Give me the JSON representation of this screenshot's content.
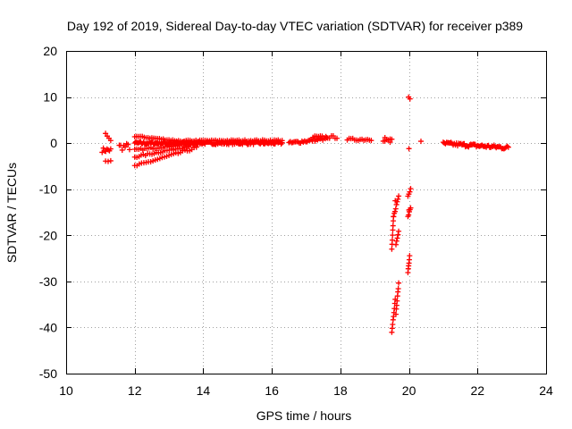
{
  "chart_data": {
    "type": "scatter",
    "title": "Day 192 of 2019, Sidereal Day-to-day VTEC variation (SDTVAR) for receiver p389",
    "xlabel": "GPS time / hours",
    "ylabel": "SDTVAR / TECUs",
    "xlim": [
      10,
      24
    ],
    "ylim": [
      -50,
      20
    ],
    "x_ticks": [
      10,
      12,
      14,
      16,
      18,
      20,
      22,
      24
    ],
    "y_ticks": [
      -50,
      -40,
      -30,
      -20,
      -10,
      0,
      10,
      20
    ],
    "grid": true,
    "marker": "plus",
    "series_color": "#ff0000",
    "bands": [
      {
        "x0": 11.05,
        "x1": 11.3,
        "y0": -1.5,
        "y1": -1.5,
        "spread": 1.0,
        "n": 8
      },
      {
        "x0": 11.15,
        "x1": 11.3,
        "y0": 2.0,
        "y1": 0.5,
        "spread": 0.4,
        "n": 4
      },
      {
        "x0": 11.15,
        "x1": 11.3,
        "y0": -4.0,
        "y1": -3.8,
        "spread": 0.3,
        "n": 3
      },
      {
        "x0": 11.55,
        "x1": 11.85,
        "y0": -0.8,
        "y1": -0.8,
        "spread": 1.6,
        "n": 8
      },
      {
        "x0": 12.0,
        "x1": 16.3,
        "y0": 0.0,
        "y1": 0.0,
        "spread": 0.6,
        "n": 150
      },
      {
        "x0": 12.0,
        "x1": 13.5,
        "y0": 1.5,
        "y1": 0.3,
        "spread": 0.3,
        "n": 28
      },
      {
        "x0": 12.0,
        "x1": 13.6,
        "y0": -1.5,
        "y1": -0.2,
        "spread": 0.4,
        "n": 28
      },
      {
        "x0": 12.0,
        "x1": 13.7,
        "y0": -3.0,
        "y1": -0.5,
        "spread": 0.4,
        "n": 28
      },
      {
        "x0": 12.0,
        "x1": 13.8,
        "y0": -5.0,
        "y1": -1.0,
        "spread": 0.5,
        "n": 28
      },
      {
        "x0": 13.5,
        "x1": 16.3,
        "y0": 0.5,
        "y1": 0.6,
        "spread": 0.3,
        "n": 50
      },
      {
        "x0": 16.5,
        "x1": 17.6,
        "y0": 0.0,
        "y1": 1.0,
        "spread": 0.6,
        "n": 30
      },
      {
        "x0": 17.2,
        "x1": 17.9,
        "y0": 1.3,
        "y1": 1.3,
        "spread": 0.6,
        "n": 14
      },
      {
        "x0": 18.2,
        "x1": 18.9,
        "y0": 0.8,
        "y1": 0.8,
        "spread": 0.5,
        "n": 14
      },
      {
        "x0": 19.25,
        "x1": 19.5,
        "y0": 0.7,
        "y1": 0.7,
        "spread": 0.6,
        "n": 6
      },
      {
        "x0": 19.5,
        "x1": 19.55,
        "y0": -23.0,
        "y1": -16.0,
        "spread": 0.3,
        "n": 8
      },
      {
        "x0": 19.55,
        "x1": 19.7,
        "y0": -16.0,
        "y1": -11.5,
        "spread": 0.4,
        "n": 8
      },
      {
        "x0": 19.62,
        "x1": 19.7,
        "y0": -22.0,
        "y1": -19.0,
        "spread": 0.3,
        "n": 5
      },
      {
        "x0": 19.5,
        "x1": 19.6,
        "y0": -41.0,
        "y1": -34.0,
        "spread": 0.3,
        "n": 9
      },
      {
        "x0": 19.62,
        "x1": 19.7,
        "y0": -37.0,
        "y1": -30.5,
        "spread": 0.3,
        "n": 8
      },
      {
        "x0": 19.97,
        "x1": 20.02,
        "y0": -28.0,
        "y1": -24.5,
        "spread": 0.3,
        "n": 6
      },
      {
        "x0": 19.97,
        "x1": 20.05,
        "y0": -16.0,
        "y1": -14.0,
        "spread": 0.3,
        "n": 5
      },
      {
        "x0": 19.97,
        "x1": 20.05,
        "y0": -11.5,
        "y1": -10.0,
        "spread": 0.3,
        "n": 4
      },
      {
        "x0": 21.0,
        "x1": 22.9,
        "y0": -0.1,
        "y1": -1.0,
        "spread": 0.8,
        "n": 60
      }
    ],
    "points": [
      [
        19.99,
        10.0
      ],
      [
        20.03,
        9.6
      ],
      [
        20.0,
        -1.2
      ],
      [
        20.35,
        0.4
      ],
      [
        19.3,
        1.2
      ],
      [
        19.45,
        0.2
      ],
      [
        20.0,
        -14.5
      ],
      [
        19.6,
        -12.5
      ]
    ]
  }
}
